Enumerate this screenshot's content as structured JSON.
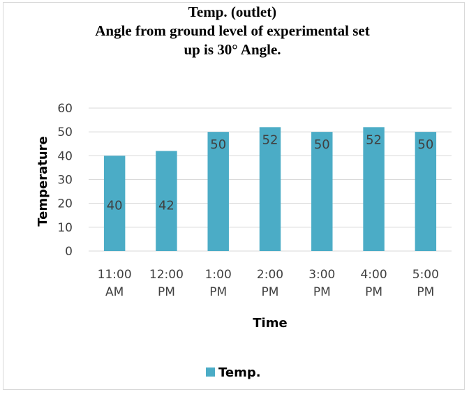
{
  "chart_data": {
    "type": "bar",
    "title_lines": [
      "Temp. (outlet)",
      "Angle from ground level of experimental set",
      "up is 30° Angle."
    ],
    "categories": [
      [
        "11:00",
        "AM"
      ],
      [
        "12:00",
        "PM"
      ],
      [
        "1:00",
        "PM"
      ],
      [
        "2:00",
        "PM"
      ],
      [
        "3:00",
        "PM"
      ],
      [
        "4:00",
        "PM"
      ],
      [
        "5:00",
        "PM"
      ]
    ],
    "series": [
      {
        "name": "Temp.",
        "values": [
          40,
          42,
          50,
          52,
          50,
          52,
          50
        ],
        "color": "#4bacc6"
      }
    ],
    "xlabel": "Time",
    "ylabel": "Temperature",
    "ylim": [
      0,
      60
    ],
    "yticks": [
      0,
      10,
      20,
      30,
      40,
      50,
      60
    ],
    "grid": true,
    "legend": "bottom"
  }
}
